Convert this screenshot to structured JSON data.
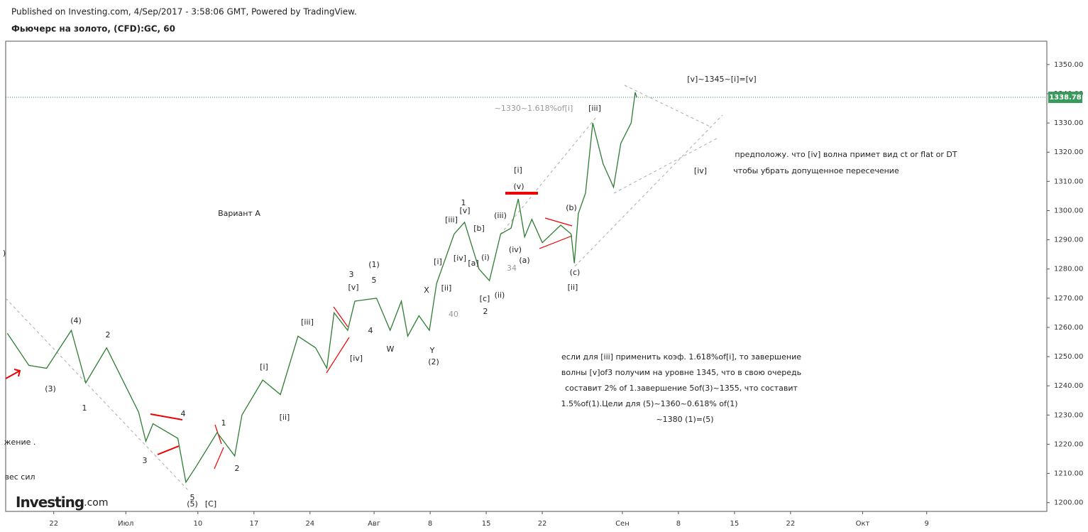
{
  "header": {
    "published": "Published on Investing.com, 4/Sep/2017 - 3:58:06 GMT, Powered by TradingView.",
    "symbol": "Фьючерс на золото, (CFD):GC, 60"
  },
  "logo": {
    "name": "Investing",
    "suffix": ".com"
  },
  "chart_data": {
    "type": "line",
    "color": "#2e7d32",
    "x": [
      -5.8,
      -3.1,
      -0.9,
      2.2,
      4,
      6.6,
      10.6,
      11.5,
      12.4,
      15.5,
      16.5,
      17.7,
      20.4,
      22.6,
      23.5,
      26.1,
      28.3,
      30.5,
      32.7,
      34.1,
      35,
      36.7,
      37.6,
      40.3,
      42,
      43.4,
      44.2,
      45.6,
      46.9,
      47.8,
      50,
      51.3,
      53.1,
      54.4,
      55.8,
      57.1,
      58,
      58.8,
      59.7,
      61,
      63.3,
      64.6,
      65,
      65.5,
      66.4,
      67.3,
      68.6,
      69.9,
      70.8,
      72.1,
      72.6,
      72.8
    ],
    "values": [
      1258,
      1247,
      1246,
      1259,
      1241,
      1253,
      1231,
      1221,
      1227,
      1222,
      1207,
      1212,
      1224,
      1216,
      1230,
      1242,
      1237,
      1257,
      1253,
      1246,
      1265,
      1259,
      1269,
      1270,
      1259,
      1269,
      1257,
      1264,
      1259,
      1275,
      1292,
      1296,
      1280,
      1276,
      1292,
      1294,
      1304,
      1291,
      1297,
      1289,
      1295,
      1292,
      1282,
      1299,
      1306,
      1330,
      1316,
      1308,
      1323,
      1330,
      1340.5,
      1338.78
    ],
    "xlim": [
      -6,
      124
    ],
    "xticks": [
      {
        "value": 0,
        "label": "22"
      },
      {
        "value": 9,
        "label": "Июл"
      },
      {
        "value": 18,
        "label": "10"
      },
      {
        "value": 25,
        "label": "17"
      },
      {
        "value": 32,
        "label": "24"
      },
      {
        "value": 40,
        "label": "Авг"
      },
      {
        "value": 47,
        "label": "8"
      },
      {
        "value": 54,
        "label": "15"
      },
      {
        "value": 61,
        "label": "22"
      },
      {
        "value": 71,
        "label": "Сен"
      },
      {
        "value": 78,
        "label": "8"
      },
      {
        "value": 85,
        "label": "15"
      },
      {
        "value": 92,
        "label": "22"
      },
      {
        "value": 101,
        "label": "Окт"
      },
      {
        "value": 109,
        "label": "9"
      }
    ],
    "ylim": [
      1197,
      1358
    ],
    "yticks": [
      {
        "value": 1200,
        "label": "1200.00"
      },
      {
        "value": 1210,
        "label": "1210.00"
      },
      {
        "value": 1220,
        "label": "1220.00"
      },
      {
        "value": 1230,
        "label": "1230.00"
      },
      {
        "value": 1240,
        "label": "1240.00"
      },
      {
        "value": 1250,
        "label": "1250.00"
      },
      {
        "value": 1260,
        "label": "1260.00"
      },
      {
        "value": 1270,
        "label": "1270.00"
      },
      {
        "value": 1280,
        "label": "1280.00"
      },
      {
        "value": 1290,
        "label": "1290.00"
      },
      {
        "value": 1300,
        "label": "1300.00"
      },
      {
        "value": 1310,
        "label": "1310.00"
      },
      {
        "value": 1320,
        "label": "1320.00"
      },
      {
        "value": 1330,
        "label": "1330.00"
      },
      {
        "value": 1340,
        "label": "1340.00"
      },
      {
        "value": 1350,
        "label": "1350.00"
      }
    ],
    "last_price": {
      "value": 1338.78,
      "label": "1338.78"
    },
    "annotations": [
      "[v]~1345~[i]=[v]",
      "~1330~1.618%of[i]",
      "[iii]",
      "предположу. что [iv] волна примет вид ct or flat or DT",
      "[iv]",
      "чтобы убрать допущенное пересечение",
      "[i]",
      "(v)",
      "Вариант А",
      "1",
      "[v]",
      "[iii]",
      "[b]",
      "(iii)",
      "(b)",
      "(iv)",
      "(i)",
      "[iv]",
      "(a)",
      "[a]",
      "[i]",
      "34",
      "(c)",
      "3",
      "(1)",
      "5",
      "[v]",
      "X",
      "[ii]",
      "[ii]",
      "(ii)",
      "[c]",
      "40",
      "2",
      "(4)",
      "2",
      "[iii]",
      "4",
      "W",
      "Y",
      "[iv]",
      "(2)",
      "[i]",
      "(3)",
      "1",
      "[ii]",
      "4",
      "1",
      "3",
      "2",
      "5",
      "(5)",
      "[C]",
      "жение .",
      "вес сил",
      ")",
      "если для [iii] применить коэф. 1.618%of[i], то завершение",
      "волны [v]of3 получим на уровне 1345, что в свою очередь",
      "составит 2% of 1.завершение 5of(3)~1355, что составит",
      "1.5%of(1).Цели для (5)~1360~0.618% of(1)",
      "~1380 (1)=(5)"
    ]
  }
}
